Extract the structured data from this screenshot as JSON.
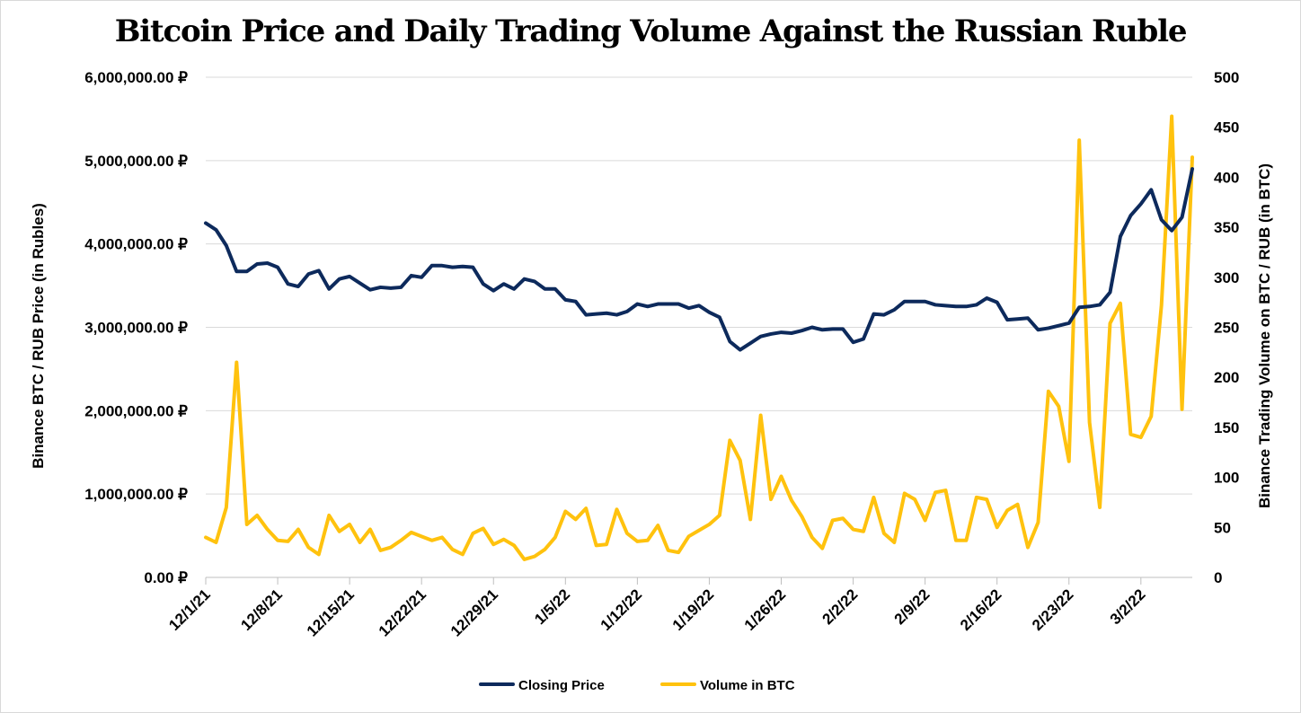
{
  "chart_data": {
    "type": "line",
    "title": "Bitcoin Price and Daily Trading Volume Against the Russian Ruble",
    "ylabel_left": "Binance BTC / RUB Price (in Rubles)",
    "ylabel_right": "Binance Trading Volume on BTC / RUB (in BTC)",
    "ylim_left": [
      0,
      6000000
    ],
    "ylim_right": [
      0,
      500
    ],
    "yticks_left": [
      "0.00 ₽",
      "1,000,000.00 ₽",
      "2,000,000.00 ₽",
      "3,000,000.00 ₽",
      "4,000,000.00 ₽",
      "5,000,000.00 ₽",
      "6,000,000.00 ₽"
    ],
    "yticks_right": [
      "0",
      "50",
      "100",
      "150",
      "200",
      "250",
      "300",
      "350",
      "400",
      "450",
      "500"
    ],
    "xticks": [
      "12/1/21",
      "12/8/21",
      "12/15/21",
      "12/22/21",
      "12/29/21",
      "1/5/22",
      "1/12/22",
      "1/19/22",
      "1/26/22",
      "2/2/22",
      "2/9/22",
      "2/16/22",
      "2/23/22",
      "3/2/22"
    ],
    "x_start": "12/1/21",
    "grid": true,
    "legend_position": "bottom",
    "series": [
      {
        "name": "Closing Price",
        "axis": "left",
        "color": "#0d2a5c",
        "values": [
          4250000,
          4170000,
          3980000,
          3670000,
          3670000,
          3760000,
          3770000,
          3720000,
          3520000,
          3490000,
          3640000,
          3680000,
          3460000,
          3580000,
          3610000,
          3530000,
          3450000,
          3480000,
          3470000,
          3480000,
          3620000,
          3600000,
          3740000,
          3740000,
          3720000,
          3730000,
          3720000,
          3520000,
          3440000,
          3520000,
          3460000,
          3580000,
          3550000,
          3460000,
          3460000,
          3330000,
          3310000,
          3150000,
          3160000,
          3170000,
          3150000,
          3190000,
          3280000,
          3250000,
          3280000,
          3280000,
          3280000,
          3230000,
          3260000,
          3180000,
          3120000,
          2830000,
          2730000,
          2810000,
          2890000,
          2920000,
          2940000,
          2930000,
          2960000,
          3000000,
          2970000,
          2980000,
          2980000,
          2820000,
          2860000,
          3160000,
          3150000,
          3210000,
          3310000,
          3310000,
          3310000,
          3270000,
          3260000,
          3250000,
          3250000,
          3270000,
          3350000,
          3300000,
          3090000,
          3100000,
          3110000,
          2970000,
          2990000,
          3020000,
          3050000,
          3240000,
          3250000,
          3270000,
          3420000,
          4090000,
          4340000,
          4480000,
          4650000,
          4290000,
          4160000,
          4320000,
          4900000
        ]
      },
      {
        "name": "Volume in BTC",
        "axis": "right",
        "color": "#ffc20e",
        "values": [
          40,
          35,
          70,
          215,
          53,
          62,
          48,
          37,
          36,
          48,
          30,
          23,
          62,
          46,
          53,
          35,
          48,
          27,
          30,
          37,
          45,
          41,
          37,
          40,
          28,
          23,
          44,
          49,
          33,
          38,
          32,
          18,
          21,
          28,
          40,
          66,
          58,
          69,
          32,
          33,
          68,
          44,
          36,
          37,
          52,
          27,
          25,
          41,
          47,
          53,
          62,
          137,
          117,
          58,
          162,
          78,
          101,
          77,
          61,
          40,
          29,
          57,
          59,
          48,
          46,
          80,
          44,
          35,
          84,
          78,
          57,
          85,
          87,
          37,
          37,
          80,
          78,
          50,
          67,
          73,
          30,
          55,
          186,
          171,
          116,
          437,
          155,
          70,
          254,
          274,
          143,
          140,
          161,
          272,
          461,
          168,
          420
        ]
      }
    ]
  }
}
